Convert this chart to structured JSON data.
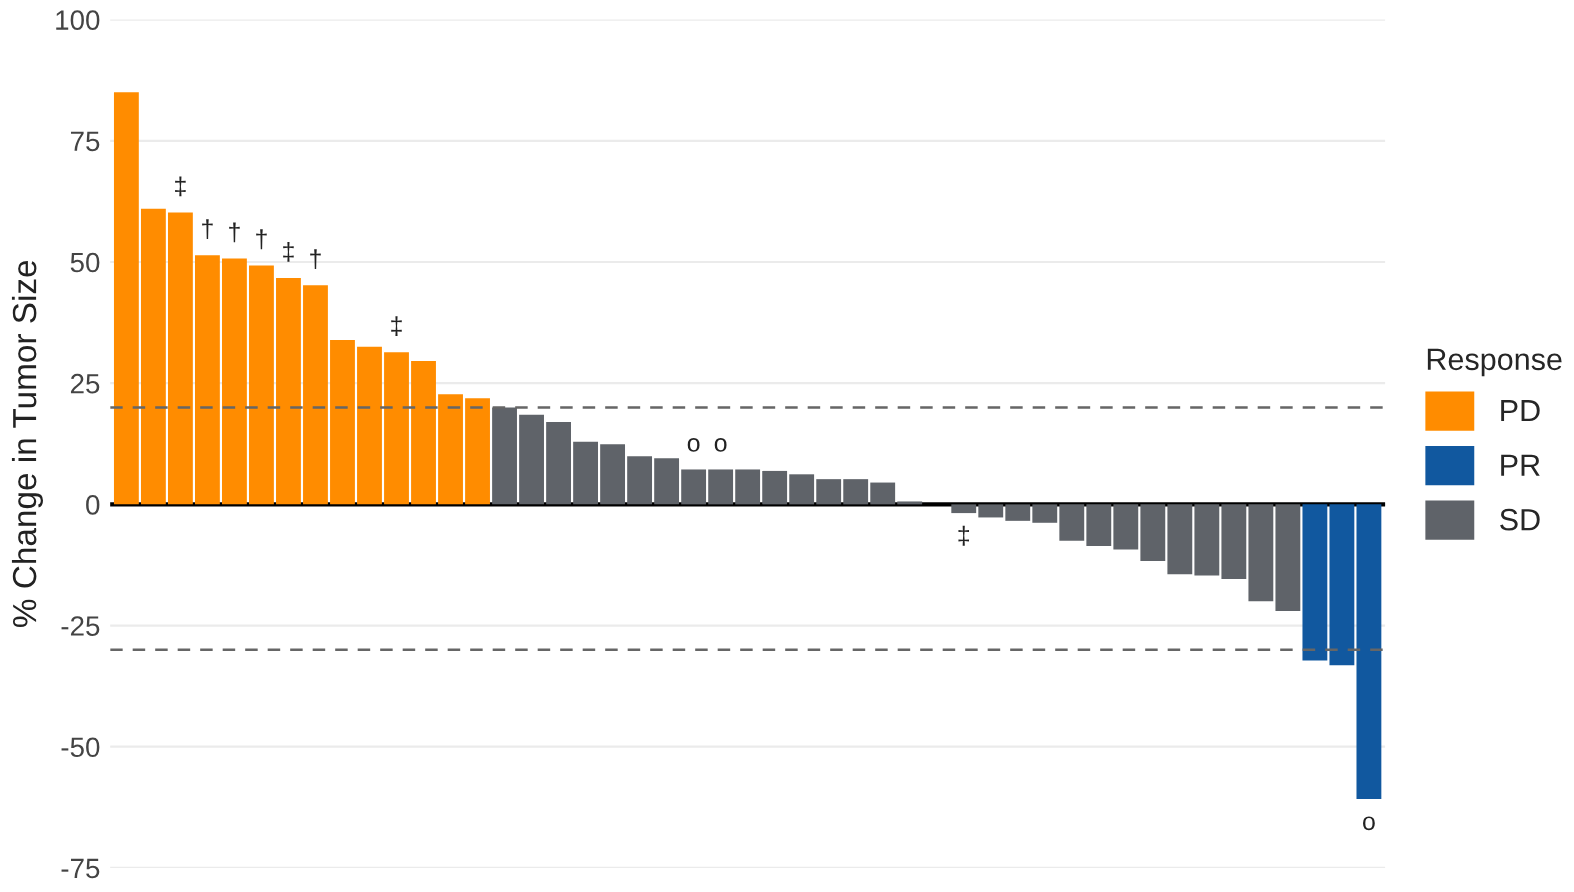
{
  "chart_data": {
    "type": "bar",
    "ylabel": "% Change in Tumor Size",
    "legend_title": "Response",
    "legend": "right",
    "categories": [
      null,
      null,
      null,
      null,
      null,
      null,
      null,
      null,
      null,
      null,
      null,
      null,
      null,
      null,
      null,
      null,
      null,
      null,
      null,
      null,
      null,
      null,
      null,
      null,
      null,
      null,
      null,
      null,
      null,
      null,
      null,
      null,
      null,
      null,
      null,
      null,
      null,
      null,
      null,
      null,
      null,
      null,
      null,
      null,
      null,
      null,
      null
    ],
    "series": [
      {
        "name": "PD",
        "color": "#ff8c00",
        "values": [
          85,
          61,
          60.2,
          51.4,
          50.7,
          49.3,
          46.7,
          45.2,
          33.9,
          32.5,
          31.4,
          29.6,
          22.7,
          21.9,
          null,
          null,
          null,
          null,
          null,
          null,
          null,
          null,
          null,
          null,
          null,
          null,
          null,
          null,
          null,
          null,
          null,
          null,
          null,
          null,
          null,
          null,
          null,
          null,
          null,
          null,
          null,
          null,
          null,
          null,
          null,
          null,
          null
        ],
        "value_labels": [
          null,
          null,
          "‡",
          "†",
          "†",
          "†",
          "‡",
          "†",
          null,
          null,
          "‡",
          null,
          null,
          null,
          null,
          null,
          null,
          null,
          null,
          null,
          null,
          null,
          null,
          null,
          null,
          null,
          null,
          null,
          null,
          null,
          null,
          null,
          null,
          null,
          null,
          null,
          null,
          null,
          null,
          null,
          null,
          null,
          null,
          null,
          null,
          null,
          null
        ]
      },
      {
        "name": "PR",
        "color": "#11589f",
        "values": [
          null,
          null,
          null,
          null,
          null,
          null,
          null,
          null,
          null,
          null,
          null,
          null,
          null,
          null,
          null,
          null,
          null,
          null,
          null,
          null,
          null,
          null,
          null,
          null,
          null,
          null,
          null,
          null,
          null,
          null,
          null,
          null,
          null,
          null,
          null,
          null,
          null,
          null,
          null,
          null,
          null,
          null,
          null,
          null,
          -32.2,
          -33.2,
          -60.8
        ],
        "value_labels": [
          null,
          null,
          null,
          null,
          null,
          null,
          null,
          null,
          null,
          null,
          null,
          null,
          null,
          null,
          null,
          null,
          null,
          null,
          null,
          null,
          null,
          null,
          null,
          null,
          null,
          null,
          null,
          null,
          null,
          null,
          null,
          null,
          null,
          null,
          null,
          null,
          null,
          null,
          null,
          null,
          null,
          null,
          null,
          null,
          null,
          null,
          "o"
        ]
      },
      {
        "name": "SD",
        "color": "#5f6369",
        "values": [
          null,
          null,
          null,
          null,
          null,
          null,
          null,
          null,
          null,
          null,
          null,
          null,
          null,
          null,
          20,
          18.5,
          17,
          12.9,
          12.4,
          9.9,
          9.5,
          7.2,
          7.2,
          7.2,
          6.9,
          6.2,
          5.2,
          5.2,
          4.5,
          0.6,
          0,
          -1.8,
          -2.7,
          -3.4,
          -3.8,
          -7.5,
          -8.6,
          -9.3,
          -11.7,
          -14.4,
          -14.7,
          -15.4,
          -20,
          -22,
          null,
          null,
          null
        ],
        "value_labels": [
          null,
          null,
          null,
          null,
          null,
          null,
          null,
          null,
          null,
          null,
          null,
          null,
          null,
          null,
          null,
          null,
          null,
          null,
          null,
          null,
          null,
          "o",
          "o",
          null,
          null,
          null,
          null,
          null,
          null,
          null,
          null,
          "‡",
          null,
          null,
          null,
          null,
          null,
          null,
          null,
          null,
          null,
          null,
          null,
          null,
          null,
          null,
          null
        ]
      }
    ],
    "ylim": [
      -75,
      100
    ],
    "yticks": [
      -75,
      -50,
      -25,
      0,
      25,
      50,
      75,
      100
    ],
    "grid": "y",
    "ref_lines": [
      {
        "axis": "y",
        "value": 0,
        "color": "#000000",
        "line_style": "solid"
      },
      {
        "axis": "y",
        "value": 20,
        "color": "#666666",
        "line_style": "dashed"
      },
      {
        "axis": "y",
        "value": -30,
        "color": "#666666",
        "line_style": "dashed"
      }
    ]
  }
}
